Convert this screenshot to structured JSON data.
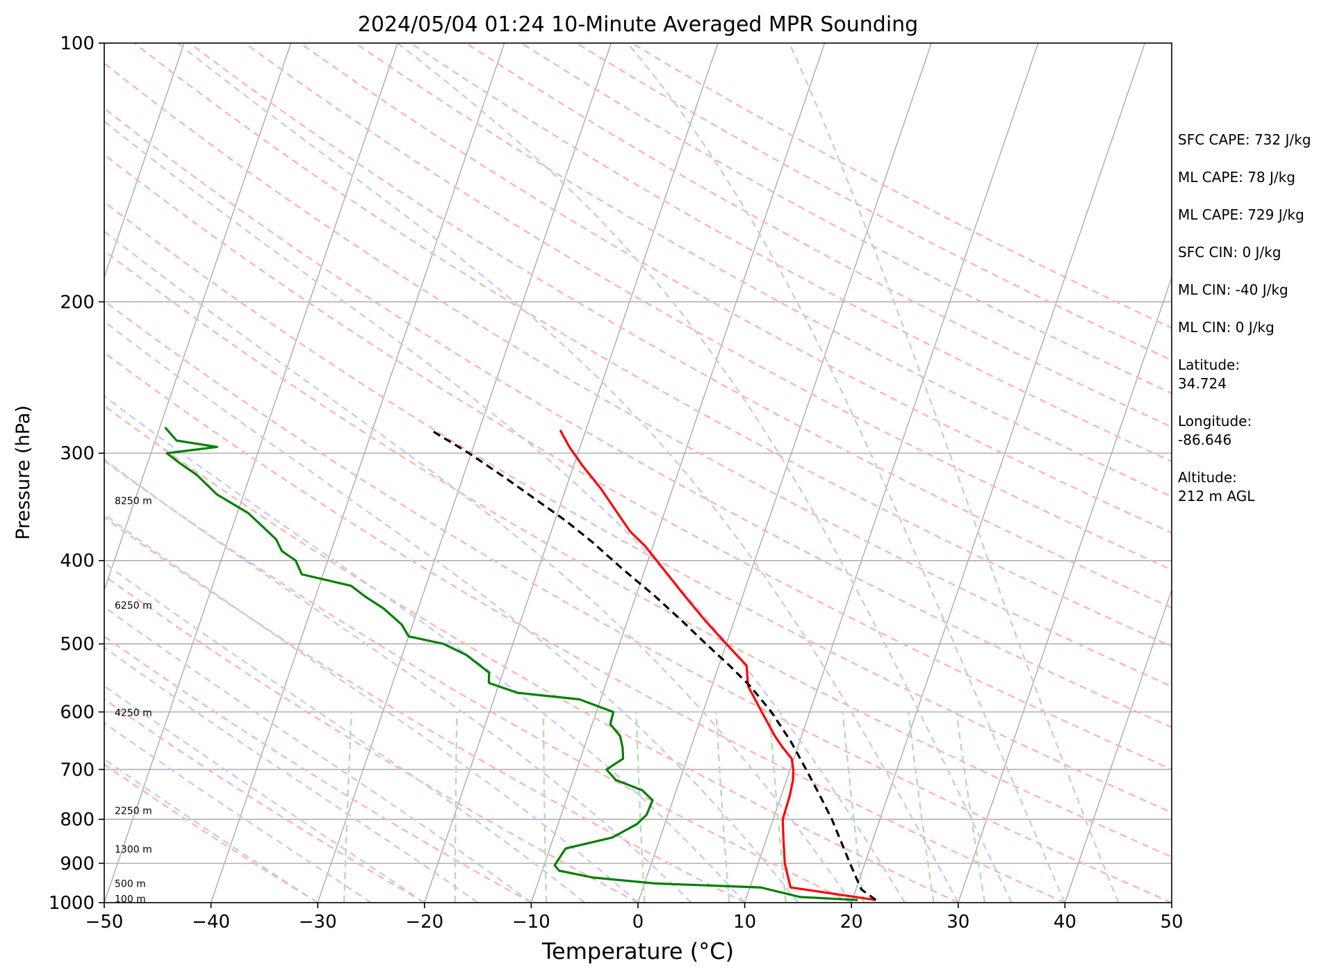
{
  "chart_data": {
    "type": "line",
    "subtype": "skew-t log-p",
    "title": "2024/05/04 01:24 10-Minute Averaged MPR Sounding",
    "xlabel": "Temperature (°C)",
    "ylabel": "Pressure (hPa)",
    "xlim": [
      -50,
      50
    ],
    "ylim": [
      1000,
      100
    ],
    "y_scale": "log",
    "x_ticks": [
      "−50",
      "−40",
      "−30",
      "−20",
      "−10",
      "0",
      "10",
      "20",
      "30",
      "40",
      "50"
    ],
    "y_ticks": [
      "100",
      "200",
      "300",
      "400",
      "500",
      "600",
      "700",
      "800",
      "900",
      "1000"
    ],
    "grid": true,
    "height_labels": [
      {
        "pressure": 988,
        "label": "100 m"
      },
      {
        "pressure": 948,
        "label": "500 m"
      },
      {
        "pressure": 865,
        "label": "1300 m"
      },
      {
        "pressure": 780,
        "label": "2250 m"
      },
      {
        "pressure": 600,
        "label": "4250 m"
      },
      {
        "pressure": 450,
        "label": "6250 m"
      },
      {
        "pressure": 340,
        "label": "8250 m"
      }
    ],
    "series": [
      {
        "color": "#ff0000",
        "points": [
          [
            993,
            22.2
          ],
          [
            960,
            13.8
          ],
          [
            900,
            12.5
          ],
          [
            850,
            11.7
          ],
          [
            800,
            10.9
          ],
          [
            750,
            10.8
          ],
          [
            720,
            10.6
          ],
          [
            700,
            10.3
          ],
          [
            680,
            9.8
          ],
          [
            660,
            8.6
          ],
          [
            640,
            7.5
          ],
          [
            600,
            5.5
          ],
          [
            560,
            3.4
          ],
          [
            530,
            2.6
          ],
          [
            500,
            0.0
          ],
          [
            470,
            -2.7
          ],
          [
            440,
            -5.4
          ],
          [
            410,
            -8.2
          ],
          [
            385,
            -10.7
          ],
          [
            370,
            -12.6
          ],
          [
            350,
            -14.6
          ],
          [
            330,
            -16.7
          ],
          [
            310,
            -19.2
          ],
          [
            295,
            -21.0
          ],
          [
            282,
            -22.4
          ]
        ]
      },
      {
        "color": "#008000",
        "points": [
          [
            993,
            20.5
          ],
          [
            985,
            15.0
          ],
          [
            960,
            11.0
          ],
          [
            950,
            1.0
          ],
          [
            935,
            -5.0
          ],
          [
            918,
            -8.4
          ],
          [
            905,
            -9.0
          ],
          [
            880,
            -8.7
          ],
          [
            865,
            -8.5
          ],
          [
            840,
            -4.5
          ],
          [
            810,
            -2.6
          ],
          [
            790,
            -2.0
          ],
          [
            760,
            -1.9
          ],
          [
            740,
            -3.2
          ],
          [
            720,
            -6.0
          ],
          [
            700,
            -7.2
          ],
          [
            680,
            -6.0
          ],
          [
            660,
            -6.4
          ],
          [
            640,
            -7.0
          ],
          [
            620,
            -8.3
          ],
          [
            600,
            -8.4
          ],
          [
            580,
            -12.0
          ],
          [
            570,
            -18.0
          ],
          [
            555,
            -21.0
          ],
          [
            540,
            -21.3
          ],
          [
            515,
            -24.0
          ],
          [
            500,
            -26.5
          ],
          [
            490,
            -30.0
          ],
          [
            475,
            -31.0
          ],
          [
            455,
            -33.2
          ],
          [
            440,
            -35.4
          ],
          [
            428,
            -37.0
          ],
          [
            415,
            -42.0
          ],
          [
            400,
            -43.0
          ],
          [
            390,
            -44.6
          ],
          [
            378,
            -45.5
          ],
          [
            365,
            -47.2
          ],
          [
            352,
            -49.0
          ],
          [
            335,
            -52.5
          ],
          [
            318,
            -55.0
          ],
          [
            308,
            -57.0
          ],
          [
            300,
            -58.5
          ],
          [
            295,
            -54.0
          ],
          [
            290,
            -58.0
          ],
          [
            280,
            -59.5
          ]
        ]
      },
      {
        "color": "#000000",
        "dashed": true,
        "points": [
          [
            993,
            22.2
          ],
          [
            965,
            20.5
          ],
          [
            900,
            18.6
          ],
          [
            850,
            17.1
          ],
          [
            800,
            15.5
          ],
          [
            750,
            13.6
          ],
          [
            700,
            11.5
          ],
          [
            650,
            9.2
          ],
          [
            600,
            6.4
          ],
          [
            560,
            3.6
          ],
          [
            530,
            1.0
          ],
          [
            500,
            -1.9
          ],
          [
            470,
            -4.9
          ],
          [
            440,
            -8.2
          ],
          [
            410,
            -12.0
          ],
          [
            380,
            -15.9
          ],
          [
            360,
            -18.9
          ],
          [
            340,
            -22.4
          ],
          [
            320,
            -26.1
          ],
          [
            300,
            -30.2
          ],
          [
            282,
            -34.5
          ]
        ]
      }
    ],
    "reference_lines": {
      "isotherm_color": "#aaaaaa",
      "dry_adiabat_color": "#ffb4b4",
      "moist_adiabat_color": "#c8c8ff",
      "mixing_ratio_color": "#b4ddb4"
    }
  },
  "stats": [
    "SFC CAPE: 732 J/kg",
    "ML CAPE: 78 J/kg",
    "ML CAPE: 729 J/kg",
    "SFC CIN: 0 J/kg",
    "ML CIN: -40 J/kg",
    "ML CIN: 0 J/kg",
    "Latitude:\n34.724",
    "Longitude:\n-86.646",
    "Altitude:\n212 m AGL"
  ]
}
